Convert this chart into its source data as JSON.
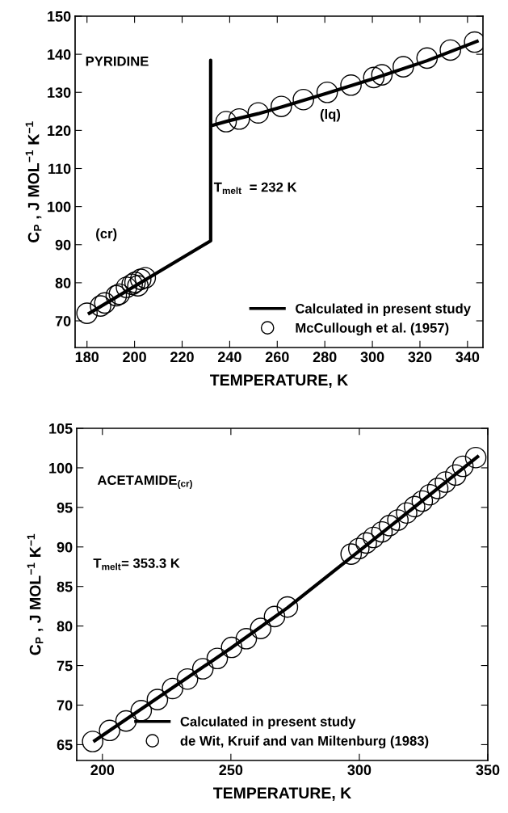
{
  "chart_data": [
    {
      "type": "line",
      "xlabel": "TEMPERATURE, K",
      "ylabel": "C$_{P}$ , J MOL$^{−1}$ K$^{−1}$",
      "annotations": [
        "PYRIDINE",
        "(cr)",
        "(lq)",
        "T$_{melt}$  = 232 K"
      ],
      "xlim": [
        175,
        346.5
      ],
      "ylim": [
        63,
        150
      ],
      "xticks": [
        180,
        200,
        220,
        240,
        260,
        280,
        300,
        320,
        340
      ],
      "yticks": [
        70,
        80,
        90,
        100,
        110,
        120,
        130,
        140,
        150
      ],
      "legend": "bottom right",
      "grid": false,
      "series": [
        {
          "name": "Calculated in present study",
          "marker": "none",
          "color": "#000000",
          "x": [
            181,
            232,
            232,
            232,
            240,
            252,
            262,
            281,
            300,
            323,
            344
          ],
          "values": [
            72,
            91,
            138.4,
            121.2,
            122.6,
            124.4,
            126.2,
            129.8,
            133.5,
            138.3,
            143.4
          ]
        },
        {
          "name": "McCullough et al. (1957)",
          "type": "scatter",
          "marker": "circle",
          "color": "#000000",
          "x": [
            180,
            185.7,
            187.5,
            192.3,
            193.6,
            196.6,
            199,
            200.2,
            201.4,
            202.6,
            204.5,
            238.5,
            244,
            252,
            261.7,
            271,
            281,
            291,
            300.6,
            304,
            313,
            323,
            332.8,
            343
          ],
          "values": [
            72.0,
            73.9,
            74.7,
            76.6,
            77,
            78.8,
            79.6,
            80.1,
            79.2,
            80.9,
            81.3,
            122.3,
            123,
            124.6,
            126.3,
            128.1,
            130,
            131.9,
            133.9,
            134.6,
            136.7,
            139,
            141.1,
            143.2
          ]
        }
      ]
    },
    {
      "type": "line",
      "xlabel": "TEMPERATURE, K",
      "ylabel": "C$_{P}$ , J MOL$^{−1}$ K$^{−1}$",
      "annotations": [
        "ACETAMIDE$_{(cr)}$",
        "T$_{melt}$= 353.3 K"
      ],
      "xlim": [
        190,
        350
      ],
      "ylim": [
        63,
        105
      ],
      "xticks": [
        200,
        250,
        300,
        350
      ],
      "yticks": [
        65,
        70,
        75,
        80,
        85,
        90,
        95,
        100,
        105
      ],
      "legend": "bottom",
      "grid": false,
      "series": [
        {
          "name": "Calculated in present study",
          "marker": "none",
          "color": "#000000",
          "x": [
            197,
            250,
            272,
            300,
            346
          ],
          "values": [
            65.5,
            77.2,
            82.3,
            89.5,
            101.4
          ]
        },
        {
          "name": "de Wit, Kruif and van Miltenburg (1983)",
          "type": "scatter",
          "marker": "circle",
          "color": "#000000",
          "x": [
            196.2,
            202.8,
            209.2,
            215.1,
            221.4,
            227.3,
            233.1,
            239.1,
            244.7,
            250.3,
            256,
            261.6,
            267,
            272,
            296.8,
            299.8,
            302.7,
            305.5,
            308.8,
            311.7,
            315,
            318.4,
            321.5,
            324.5,
            327.4,
            330.5,
            333.5,
            337.5,
            340.3,
            345.3
          ],
          "values": [
            65.4,
            66.8,
            68.0,
            69.3,
            70.7,
            72.1,
            73.3,
            74.6,
            75.9,
            77.3,
            78.4,
            79.7,
            81.2,
            82.4,
            89.1,
            89.8,
            90.5,
            91.2,
            91.9,
            92.7,
            93.4,
            94.3,
            95.1,
            95.8,
            96.6,
            97.4,
            98.2,
            99.1,
            100.2,
            101.3
          ]
        }
      ]
    }
  ]
}
